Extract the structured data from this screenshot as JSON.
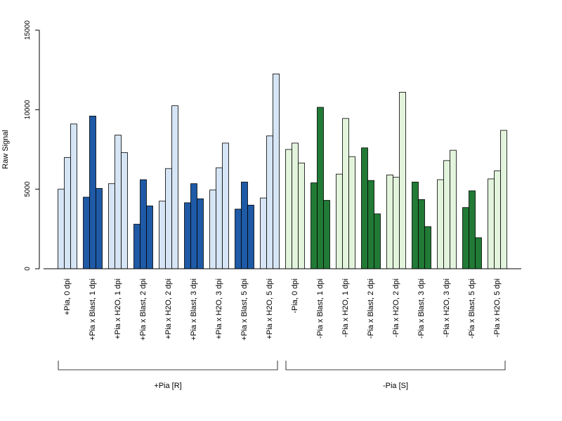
{
  "chart_data": {
    "type": "bar",
    "ylabel": "Raw Signal",
    "ylim": [
      0,
      15000
    ],
    "yticks": [
      "0",
      "5000",
      "10000",
      "15000"
    ],
    "grid": false,
    "bars_per_category": 3,
    "colors": {
      "pia_light": "#d6e5f5",
      "pia_dark": "#1f5aa6",
      "nopia_light": "#e3f4dc",
      "nopia_dark": "#217a35",
      "edge": "#000000"
    },
    "categories": [
      {
        "label": "+Pia, 0 dpi",
        "color": "pia_light",
        "values": [
          5000,
          7000,
          9100
        ]
      },
      {
        "label": "+Pia x Blast, 1 dpi",
        "color": "pia_dark",
        "values": [
          4500,
          9600,
          5050
        ]
      },
      {
        "label": "+Pia x H2O, 1 dpi",
        "color": "pia_light",
        "values": [
          5350,
          8400,
          7300
        ]
      },
      {
        "label": "+Pia x Blast, 2 dpi",
        "color": "pia_dark",
        "values": [
          2800,
          5600,
          3950
        ]
      },
      {
        "label": "+Pia x H2O, 2 dpi",
        "color": "pia_light",
        "values": [
          4250,
          6300,
          10250
        ]
      },
      {
        "label": "+Pia x Blast, 3 dpi",
        "color": "pia_dark",
        "values": [
          4150,
          5350,
          4400
        ]
      },
      {
        "label": "+Pia x H2O, 3 dpi",
        "color": "pia_light",
        "values": [
          4950,
          6350,
          7900
        ]
      },
      {
        "label": "+Pia x Blast, 5 dpi",
        "color": "pia_dark",
        "values": [
          3750,
          5450,
          4000
        ]
      },
      {
        "label": "+Pia x H2O, 5 dpi",
        "color": "pia_light",
        "values": [
          4450,
          8350,
          12250
        ]
      },
      {
        "label": "-Pia, 0 dpi",
        "color": "nopia_light",
        "values": [
          7500,
          7900,
          6650
        ]
      },
      {
        "label": "-Pia x Blast, 1 dpi",
        "color": "nopia_dark",
        "values": [
          5400,
          10150,
          4300
        ]
      },
      {
        "label": "-Pia x H2O, 1 dpi",
        "color": "nopia_light",
        "values": [
          5950,
          9450,
          7050
        ]
      },
      {
        "label": "-Pia x Blast, 2 dpi",
        "color": "nopia_dark",
        "values": [
          7600,
          5550,
          3450
        ]
      },
      {
        "label": "-Pia x H2O, 2 dpi",
        "color": "nopia_light",
        "values": [
          5900,
          5750,
          11100
        ]
      },
      {
        "label": "-Pia x Blast, 3 dpi",
        "color": "nopia_dark",
        "values": [
          5450,
          4350,
          2650
        ]
      },
      {
        "label": "-Pia x H2O, 3 dpi",
        "color": "nopia_light",
        "values": [
          5600,
          6800,
          7450
        ]
      },
      {
        "label": "-Pia x Blast, 5 dpi",
        "color": "nopia_dark",
        "values": [
          3850,
          4900,
          1950
        ]
      },
      {
        "label": "-Pia x H2O, 5 dpi",
        "color": "nopia_light",
        "values": [
          5650,
          6150,
          8700
        ]
      }
    ],
    "groups": [
      {
        "label": "+Pia [R]",
        "first": 0,
        "last": 8
      },
      {
        "label": "-Pia [S]",
        "first": 9,
        "last": 17
      }
    ]
  }
}
